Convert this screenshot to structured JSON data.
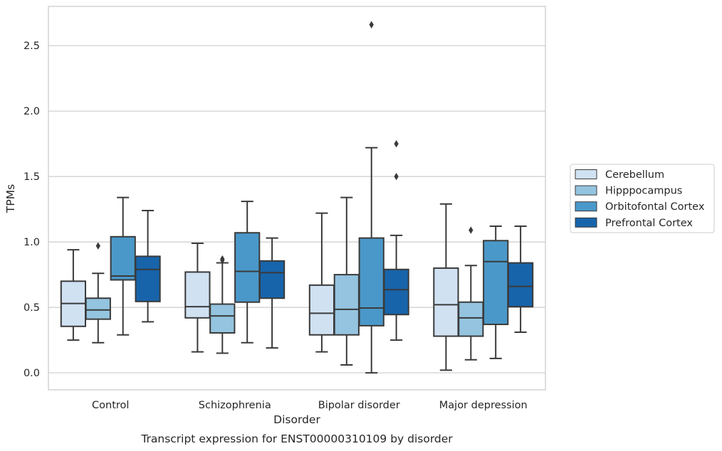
{
  "chart_data": {
    "type": "box",
    "caption": "Transcript expression for ENST00000310109 by disorder",
    "xlabel": "Disorder",
    "ylabel": "TPMs",
    "ylim": [
      -0.13,
      2.8
    ],
    "yticks": [
      "0.0",
      "0.5",
      "1.0",
      "1.5",
      "2.0",
      "2.5"
    ],
    "grid": "horizontal",
    "legend_position": "right",
    "categories": [
      "Control",
      "Schizophrenia",
      "Bipolar disorder",
      "Major depression"
    ],
    "series": [
      {
        "name": "Cerebellum",
        "color": "#d0e1f2",
        "boxes": [
          {
            "whislo": 0.25,
            "q1": 0.355,
            "med": 0.53,
            "q3": 0.7,
            "whishi": 0.94,
            "fliers": []
          },
          {
            "whislo": 0.16,
            "q1": 0.42,
            "med": 0.505,
            "q3": 0.77,
            "whishi": 0.99,
            "fliers": []
          },
          {
            "whislo": 0.16,
            "q1": 0.29,
            "med": 0.455,
            "q3": 0.67,
            "whishi": 1.22,
            "fliers": []
          },
          {
            "whislo": 0.02,
            "q1": 0.28,
            "med": 0.52,
            "q3": 0.8,
            "whishi": 1.29,
            "fliers": []
          }
        ]
      },
      {
        "name": "Hipppocampus",
        "color": "#94c4df",
        "boxes": [
          {
            "whislo": 0.23,
            "q1": 0.41,
            "med": 0.48,
            "q3": 0.57,
            "whishi": 0.76,
            "fliers": [
              0.97
            ]
          },
          {
            "whislo": 0.15,
            "q1": 0.305,
            "med": 0.435,
            "q3": 0.525,
            "whishi": 0.84,
            "fliers": [
              0.86,
              0.87
            ]
          },
          {
            "whislo": 0.06,
            "q1": 0.29,
            "med": 0.485,
            "q3": 0.75,
            "whishi": 1.34,
            "fliers": []
          },
          {
            "whislo": 0.1,
            "q1": 0.28,
            "med": 0.42,
            "q3": 0.54,
            "whishi": 0.82,
            "fliers": [
              1.09
            ]
          }
        ]
      },
      {
        "name": "Orbitofontal Cortex",
        "color": "#4a98c9",
        "boxes": [
          {
            "whislo": 0.29,
            "q1": 0.71,
            "med": 0.74,
            "q3": 1.04,
            "whishi": 1.34,
            "fliers": []
          },
          {
            "whislo": 0.23,
            "q1": 0.54,
            "med": 0.775,
            "q3": 1.07,
            "whishi": 1.31,
            "fliers": []
          },
          {
            "whislo": 0.0,
            "q1": 0.36,
            "med": 0.495,
            "q3": 1.03,
            "whishi": 1.72,
            "fliers": [
              2.66
            ]
          },
          {
            "whislo": 0.11,
            "q1": 0.37,
            "med": 0.85,
            "q3": 1.01,
            "whishi": 1.12,
            "fliers": []
          }
        ]
      },
      {
        "name": "Prefrontal Cortex",
        "color": "#1764ab",
        "boxes": [
          {
            "whislo": 0.39,
            "q1": 0.545,
            "med": 0.79,
            "q3": 0.89,
            "whishi": 1.24,
            "fliers": []
          },
          {
            "whislo": 0.19,
            "q1": 0.57,
            "med": 0.765,
            "q3": 0.855,
            "whishi": 1.03,
            "fliers": []
          },
          {
            "whislo": 0.25,
            "q1": 0.445,
            "med": 0.635,
            "q3": 0.79,
            "whishi": 1.05,
            "fliers": [
              1.5,
              1.75
            ]
          },
          {
            "whislo": 0.31,
            "q1": 0.505,
            "med": 0.66,
            "q3": 0.84,
            "whishi": 1.12,
            "fliers": []
          }
        ]
      }
    ]
  }
}
